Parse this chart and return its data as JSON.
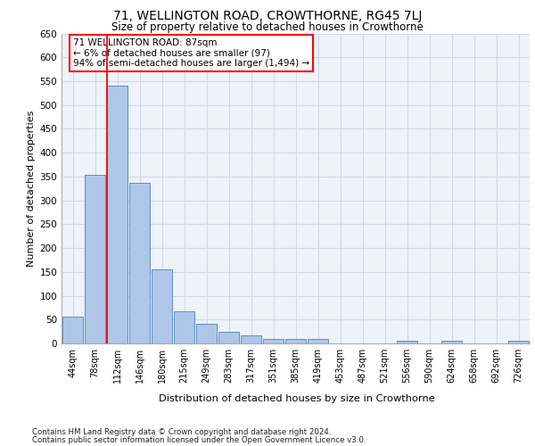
{
  "title": "71, WELLINGTON ROAD, CROWTHORNE, RG45 7LJ",
  "subtitle": "Size of property relative to detached houses in Crowthorne",
  "xlabel": "Distribution of detached houses by size in Crowthorne",
  "ylabel": "Number of detached properties",
  "categories": [
    "44sqm",
    "78sqm",
    "112sqm",
    "146sqm",
    "180sqm",
    "215sqm",
    "249sqm",
    "283sqm",
    "317sqm",
    "351sqm",
    "385sqm",
    "419sqm",
    "453sqm",
    "487sqm",
    "521sqm",
    "556sqm",
    "590sqm",
    "624sqm",
    "658sqm",
    "692sqm",
    "726sqm"
  ],
  "values": [
    57,
    353,
    540,
    336,
    156,
    67,
    42,
    25,
    17,
    10,
    10,
    9,
    0,
    0,
    0,
    5,
    0,
    5,
    0,
    0,
    5
  ],
  "bar_color": "#aec6e8",
  "bar_edge_color": "#5b8ec4",
  "grid_color": "#d0d8e8",
  "background_color": "#eef2f9",
  "annotation_text_line1": "71 WELLINGTON ROAD: 87sqm",
  "annotation_text_line2": "← 6% of detached houses are smaller (97)",
  "annotation_text_line3": "94% of semi-detached houses are larger (1,494) →",
  "footer_line1": "Contains HM Land Registry data © Crown copyright and database right 2024.",
  "footer_line2": "Contains public sector information licensed under the Open Government Licence v3.0.",
  "ylim": [
    0,
    650
  ],
  "yticks": [
    0,
    50,
    100,
    150,
    200,
    250,
    300,
    350,
    400,
    450,
    500,
    550,
    600,
    650
  ],
  "red_line_x": 1.52
}
